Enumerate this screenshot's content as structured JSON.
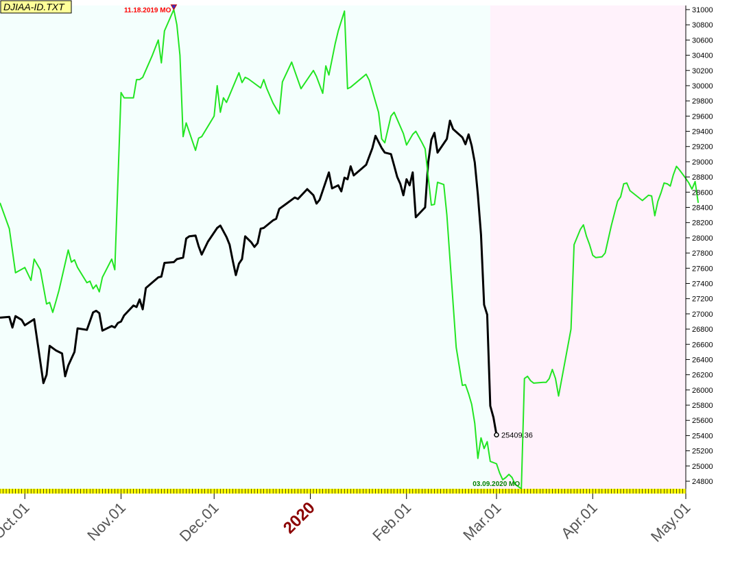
{
  "chart_data": {
    "type": "line",
    "title": "DJIAA-ID.TXT",
    "ylim": [
      24700,
      31050
    ],
    "y_ticks": [
      24800,
      25000,
      25200,
      25400,
      25600,
      25800,
      26000,
      26200,
      26400,
      26600,
      26800,
      27000,
      27200,
      27400,
      27600,
      27800,
      28000,
      28200,
      28400,
      28600,
      28800,
      29000,
      29200,
      29400,
      29600,
      29800,
      30000,
      30200,
      30400,
      30600,
      30800,
      31000
    ],
    "x_labels": [
      {
        "text": "Oct.01",
        "x": "2019-10-01"
      },
      {
        "text": "Nov.01",
        "x": "2019-11-01"
      },
      {
        "text": "Dec.01",
        "x": "2019-12-01"
      },
      {
        "text": "2020",
        "x": "2020-01-01",
        "year": true
      },
      {
        "text": "Feb.01",
        "x": "2020-02-01"
      },
      {
        "text": "Mar.01",
        "x": "2020-03-01"
      },
      {
        "text": "Apr.01",
        "x": "2020-04-01"
      },
      {
        "text": "May.01",
        "x": "2020-05-01"
      }
    ],
    "x_range": [
      "2019-09-23",
      "2020-05-01"
    ],
    "shaded_region_start": "2020-02-28",
    "colors": {
      "background_past": "#f4fffd",
      "background_future": "#fff2fb",
      "series_primary": "#000000",
      "series_secondary": "#22e522",
      "high_marker": "#ff0000",
      "low_marker": "#008000"
    },
    "annotations": {
      "high_label": "11.18.2019 MO",
      "low_label": "03.09.2020 MO",
      "last_value_label": "25409.36"
    },
    "series": [
      {
        "color": "#000000",
        "points": [
          [
            "2019-09-23",
            26950
          ],
          [
            "2019-09-26",
            26960
          ],
          [
            "2019-09-27",
            26820
          ],
          [
            "2019-09-28",
            26970
          ],
          [
            "2019-09-30",
            26920
          ],
          [
            "2019-10-01",
            26850
          ],
          [
            "2019-10-04",
            26930
          ],
          [
            "2019-10-07",
            26090
          ],
          [
            "2019-10-08",
            26200
          ],
          [
            "2019-10-09",
            26580
          ],
          [
            "2019-10-11",
            26520
          ],
          [
            "2019-10-13",
            26480
          ],
          [
            "2019-10-14",
            26180
          ],
          [
            "2019-10-15",
            26320
          ],
          [
            "2019-10-17",
            26500
          ],
          [
            "2019-10-18",
            26810
          ],
          [
            "2019-10-21",
            26790
          ],
          [
            "2019-10-23",
            27020
          ],
          [
            "2019-10-24",
            27040
          ],
          [
            "2019-10-25",
            27010
          ],
          [
            "2019-10-26",
            26780
          ],
          [
            "2019-10-29",
            26840
          ],
          [
            "2019-10-30",
            26820
          ],
          [
            "2019-10-31",
            26880
          ],
          [
            "2019-11-01",
            26900
          ],
          [
            "2019-11-02",
            26980
          ],
          [
            "2019-11-05",
            27110
          ],
          [
            "2019-11-06",
            27090
          ],
          [
            "2019-11-07",
            27190
          ],
          [
            "2019-11-08",
            27060
          ],
          [
            "2019-11-09",
            27340
          ],
          [
            "2019-11-13",
            27480
          ],
          [
            "2019-11-14",
            27490
          ],
          [
            "2019-11-15",
            27670
          ],
          [
            "2019-11-18",
            27680
          ],
          [
            "2019-11-19",
            27720
          ],
          [
            "2019-11-21",
            27740
          ],
          [
            "2019-11-22",
            27990
          ],
          [
            "2019-11-23",
            28020
          ],
          [
            "2019-11-25",
            28030
          ],
          [
            "2019-11-26",
            27890
          ],
          [
            "2019-11-27",
            27780
          ],
          [
            "2019-11-29",
            27950
          ],
          [
            "2019-12-02",
            28130
          ],
          [
            "2019-12-03",
            28160
          ],
          [
            "2019-12-05",
            28010
          ],
          [
            "2019-12-06",
            27910
          ],
          [
            "2019-12-07",
            27700
          ],
          [
            "2019-12-08",
            27510
          ],
          [
            "2019-12-09",
            27660
          ],
          [
            "2019-12-10",
            27720
          ],
          [
            "2019-12-11",
            28020
          ],
          [
            "2019-12-13",
            27940
          ],
          [
            "2019-12-14",
            27880
          ],
          [
            "2019-12-15",
            27930
          ],
          [
            "2019-12-16",
            28120
          ],
          [
            "2019-12-17",
            28130
          ],
          [
            "2019-12-20",
            28230
          ],
          [
            "2019-12-21",
            28250
          ],
          [
            "2019-12-22",
            28380
          ],
          [
            "2019-12-24",
            28440
          ],
          [
            "2019-12-27",
            28530
          ],
          [
            "2019-12-28",
            28510
          ],
          [
            "2019-12-31",
            28640
          ],
          [
            "2020-01-02",
            28560
          ],
          [
            "2020-01-03",
            28450
          ],
          [
            "2020-01-04",
            28500
          ],
          [
            "2020-01-07",
            28860
          ],
          [
            "2020-01-08",
            28650
          ],
          [
            "2020-01-10",
            28690
          ],
          [
            "2020-01-11",
            28610
          ],
          [
            "2020-01-12",
            28790
          ],
          [
            "2020-01-13",
            28770
          ],
          [
            "2020-01-14",
            28940
          ],
          [
            "2020-01-15",
            28820
          ],
          [
            "2020-01-17",
            28890
          ],
          [
            "2020-01-19",
            28960
          ],
          [
            "2020-01-21",
            29180
          ],
          [
            "2020-01-22",
            29340
          ],
          [
            "2020-01-24",
            29180
          ],
          [
            "2020-01-25",
            29120
          ],
          [
            "2020-01-27",
            29100
          ],
          [
            "2020-01-28",
            28950
          ],
          [
            "2020-01-29",
            28800
          ],
          [
            "2020-01-30",
            28710
          ],
          [
            "2020-01-31",
            28560
          ],
          [
            "2020-02-01",
            28770
          ],
          [
            "2020-02-02",
            28690
          ],
          [
            "2020-02-03",
            28860
          ],
          [
            "2020-02-04",
            28270
          ],
          [
            "2020-02-07",
            28400
          ],
          [
            "2020-02-08",
            28990
          ],
          [
            "2020-02-09",
            29290
          ],
          [
            "2020-02-10",
            29380
          ],
          [
            "2020-02-11",
            29120
          ],
          [
            "2020-02-14",
            29300
          ],
          [
            "2020-02-15",
            29540
          ],
          [
            "2020-02-16",
            29430
          ],
          [
            "2020-02-19",
            29320
          ],
          [
            "2020-02-20",
            29230
          ],
          [
            "2020-02-21",
            29360
          ],
          [
            "2020-02-22",
            29210
          ],
          [
            "2020-02-23",
            28990
          ],
          [
            "2020-02-24",
            28570
          ],
          [
            "2020-02-25",
            28040
          ],
          [
            "2020-02-26",
            27120
          ],
          [
            "2020-02-27",
            26990
          ],
          [
            "2020-02-28",
            25790
          ],
          [
            "2020-02-29",
            25640
          ],
          [
            "2020-03-01",
            25409.36
          ]
        ]
      },
      {
        "color": "#22e522",
        "points": [
          [
            "2019-09-23",
            28460
          ],
          [
            "2019-09-26",
            28120
          ],
          [
            "2019-09-28",
            27540
          ],
          [
            "2019-10-01",
            27610
          ],
          [
            "2019-10-03",
            27440
          ],
          [
            "2019-10-04",
            27720
          ],
          [
            "2019-10-06",
            27580
          ],
          [
            "2019-10-08",
            27130
          ],
          [
            "2019-10-09",
            27150
          ],
          [
            "2019-10-10",
            27020
          ],
          [
            "2019-10-11",
            27160
          ],
          [
            "2019-10-12",
            27310
          ],
          [
            "2019-10-15",
            27840
          ],
          [
            "2019-10-16",
            27680
          ],
          [
            "2019-10-17",
            27710
          ],
          [
            "2019-10-18",
            27610
          ],
          [
            "2019-10-21",
            27410
          ],
          [
            "2019-10-22",
            27430
          ],
          [
            "2019-10-23",
            27330
          ],
          [
            "2019-10-24",
            27380
          ],
          [
            "2019-10-25",
            27290
          ],
          [
            "2019-10-26",
            27480
          ],
          [
            "2019-10-29",
            27720
          ],
          [
            "2019-10-30",
            27580
          ],
          [
            "2019-11-01",
            29910
          ],
          [
            "2019-11-02",
            29840
          ],
          [
            "2019-11-05",
            29840
          ],
          [
            "2019-11-06",
            30080
          ],
          [
            "2019-11-07",
            30080
          ],
          [
            "2019-11-08",
            30110
          ],
          [
            "2019-11-11",
            30390
          ],
          [
            "2019-11-13",
            30600
          ],
          [
            "2019-11-14",
            30300
          ],
          [
            "2019-11-15",
            30720
          ],
          [
            "2019-11-18",
            31000
          ],
          [
            "2019-11-19",
            30800
          ],
          [
            "2019-11-20",
            30400
          ],
          [
            "2019-11-21",
            29330
          ],
          [
            "2019-11-22",
            29510
          ],
          [
            "2019-11-25",
            29150
          ],
          [
            "2019-11-26",
            29310
          ],
          [
            "2019-11-27",
            29330
          ],
          [
            "2019-12-01",
            29600
          ],
          [
            "2019-12-02",
            30000
          ],
          [
            "2019-12-03",
            29650
          ],
          [
            "2019-12-04",
            29840
          ],
          [
            "2019-12-05",
            29780
          ],
          [
            "2019-12-09",
            30170
          ],
          [
            "2019-12-10",
            30040
          ],
          [
            "2019-12-11",
            30110
          ],
          [
            "2019-12-12",
            30090
          ],
          [
            "2019-12-16",
            29970
          ],
          [
            "2019-12-17",
            30080
          ],
          [
            "2019-12-18",
            29960
          ],
          [
            "2019-12-20",
            29770
          ],
          [
            "2019-12-22",
            29630
          ],
          [
            "2019-12-23",
            30050
          ],
          [
            "2019-12-26",
            30310
          ],
          [
            "2019-12-27",
            30190
          ],
          [
            "2019-12-29",
            29960
          ],
          [
            "2020-01-02",
            30200
          ],
          [
            "2020-01-03",
            30120
          ],
          [
            "2020-01-05",
            29900
          ],
          [
            "2020-01-06",
            30260
          ],
          [
            "2020-01-07",
            30140
          ],
          [
            "2020-01-09",
            30550
          ],
          [
            "2020-01-10",
            30720
          ],
          [
            "2020-01-12",
            30980
          ],
          [
            "2020-01-13",
            29960
          ],
          [
            "2020-01-14",
            29980
          ],
          [
            "2020-01-19",
            30150
          ],
          [
            "2020-01-20",
            30070
          ],
          [
            "2020-01-23",
            29650
          ],
          [
            "2020-01-24",
            29300
          ],
          [
            "2020-01-25",
            29250
          ],
          [
            "2020-01-27",
            29600
          ],
          [
            "2020-01-28",
            29650
          ],
          [
            "2020-01-31",
            29370
          ],
          [
            "2020-02-01",
            29220
          ],
          [
            "2020-02-03",
            29360
          ],
          [
            "2020-02-04",
            29400
          ],
          [
            "2020-02-06",
            29250
          ],
          [
            "2020-02-07",
            29170
          ],
          [
            "2020-02-08",
            28800
          ],
          [
            "2020-02-09",
            28430
          ],
          [
            "2020-02-10",
            28440
          ],
          [
            "2020-02-11",
            28730
          ],
          [
            "2020-02-13",
            28700
          ],
          [
            "2020-02-14",
            28300
          ],
          [
            "2020-02-17",
            26560
          ],
          [
            "2020-02-19",
            26060
          ],
          [
            "2020-02-20",
            26070
          ],
          [
            "2020-02-21",
            25950
          ],
          [
            "2020-02-22",
            25810
          ],
          [
            "2020-02-23",
            25560
          ],
          [
            "2020-02-24",
            25100
          ],
          [
            "2020-02-25",
            25370
          ],
          [
            "2020-02-26",
            25230
          ],
          [
            "2020-02-27",
            25320
          ],
          [
            "2020-02-28",
            25060
          ],
          [
            "2020-03-01",
            25030
          ],
          [
            "2020-03-02",
            24910
          ],
          [
            "2020-03-03",
            24820
          ],
          [
            "2020-03-04",
            24850
          ],
          [
            "2020-03-05",
            24890
          ],
          [
            "2020-03-06",
            24850
          ],
          [
            "2020-03-07",
            24760
          ],
          [
            "2020-03-09",
            24700
          ],
          [
            "2020-03-10",
            26150
          ],
          [
            "2020-03-11",
            26180
          ],
          [
            "2020-03-12",
            26120
          ],
          [
            "2020-03-13",
            26090
          ],
          [
            "2020-03-16",
            26100
          ],
          [
            "2020-03-17",
            26100
          ],
          [
            "2020-03-18",
            26150
          ],
          [
            "2020-03-19",
            26270
          ],
          [
            "2020-03-20",
            26150
          ],
          [
            "2020-03-21",
            25920
          ],
          [
            "2020-03-25",
            26800
          ],
          [
            "2020-03-26",
            27910
          ],
          [
            "2020-03-28",
            28110
          ],
          [
            "2020-03-29",
            28170
          ],
          [
            "2020-03-30",
            28020
          ],
          [
            "2020-03-31",
            27910
          ],
          [
            "2020-04-01",
            27770
          ],
          [
            "2020-04-02",
            27740
          ],
          [
            "2020-04-04",
            27750
          ],
          [
            "2020-04-05",
            27800
          ],
          [
            "2020-04-07",
            28160
          ],
          [
            "2020-04-09",
            28480
          ],
          [
            "2020-04-10",
            28540
          ],
          [
            "2020-04-11",
            28710
          ],
          [
            "2020-04-12",
            28720
          ],
          [
            "2020-04-13",
            28620
          ],
          [
            "2020-04-17",
            28490
          ],
          [
            "2020-04-19",
            28560
          ],
          [
            "2020-04-20",
            28550
          ],
          [
            "2020-04-21",
            28290
          ],
          [
            "2020-04-22",
            28480
          ],
          [
            "2020-04-23",
            28590
          ],
          [
            "2020-04-24",
            28720
          ],
          [
            "2020-04-25",
            28710
          ],
          [
            "2020-04-26",
            28680
          ],
          [
            "2020-04-27",
            28830
          ],
          [
            "2020-04-28",
            28940
          ],
          [
            "2020-04-29",
            28890
          ],
          [
            "2020-05-01",
            28780
          ],
          [
            "2020-05-02",
            28720
          ],
          [
            "2020-05-03",
            28640
          ],
          [
            "2020-05-04",
            28740
          ],
          [
            "2020-05-05",
            28460
          ]
        ]
      }
    ]
  }
}
